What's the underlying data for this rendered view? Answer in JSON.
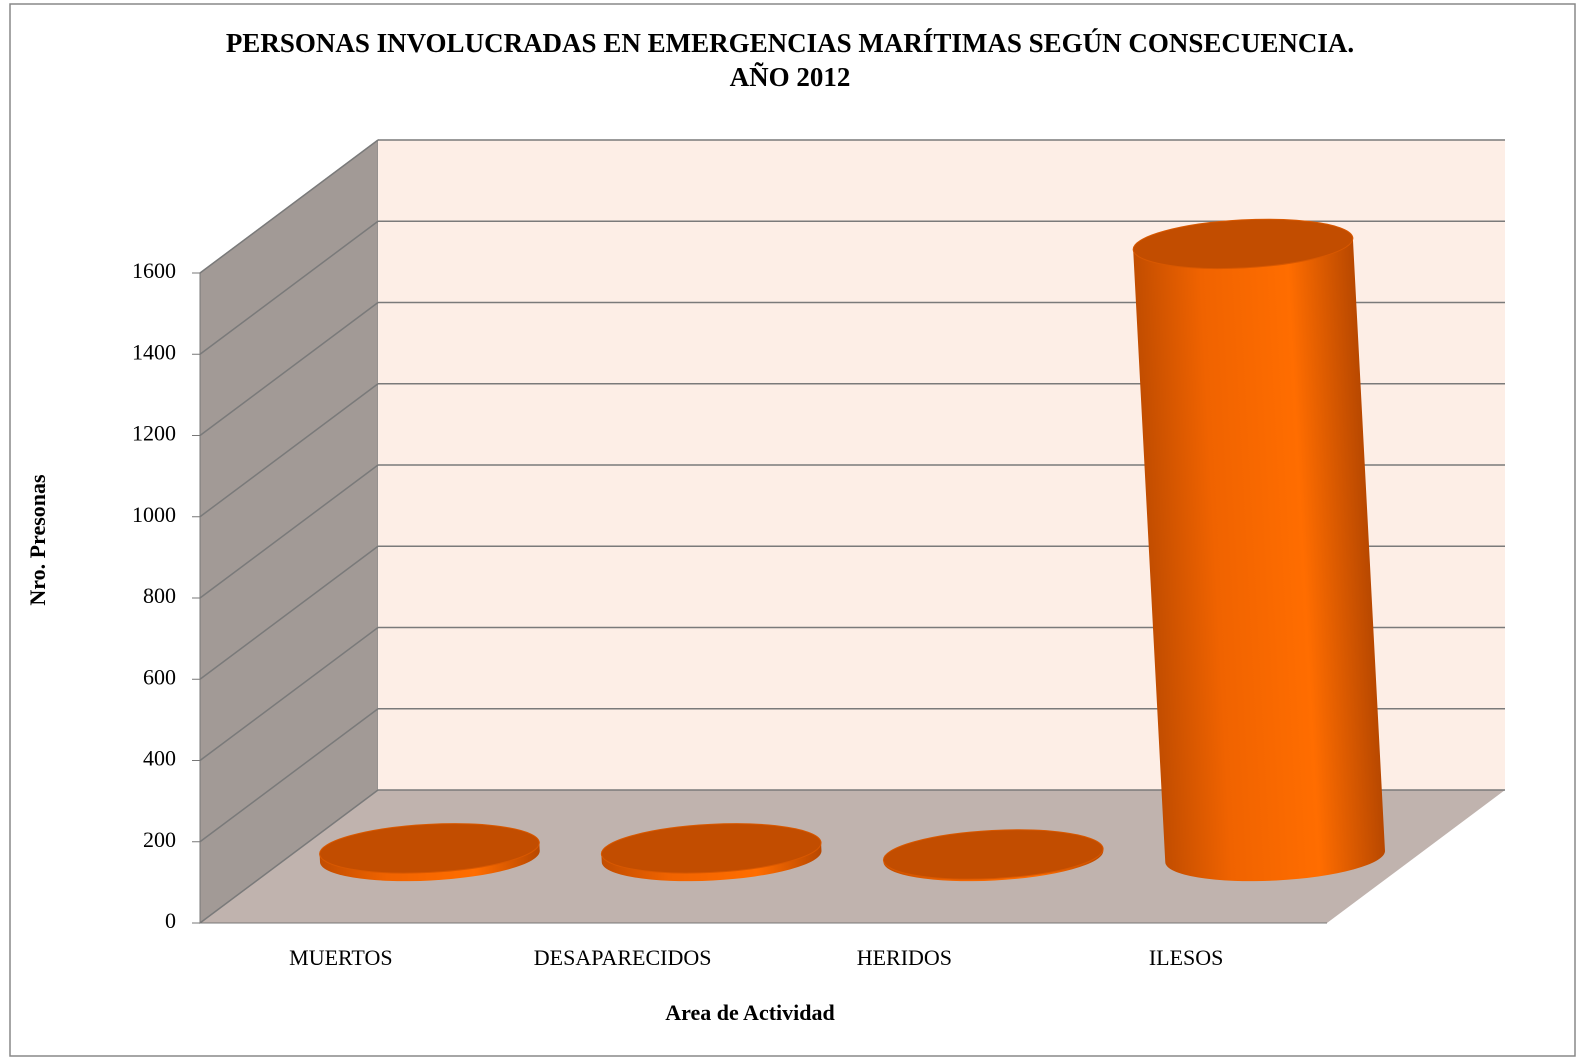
{
  "chart_data": {
    "type": "bar3d",
    "title": [
      "PERSONAS INVOLUCRADAS EN EMERGENCIAS MARÍTIMAS  SEGÚN CONSECUENCIA.",
      "AÑO 2012"
    ],
    "x_label": "Area de Actividad",
    "y_label": "Nro. Presonas",
    "categories": [
      "MUERTOS",
      "DESAPARECIDOS",
      "HERIDOS",
      "ILESOS"
    ],
    "values": [
      20,
      20,
      5,
      1510
    ],
    "color": "#ff6a00",
    "ylim": [
      0,
      1600
    ],
    "yticks": [
      0,
      200,
      400,
      600,
      800,
      1000,
      1200,
      1400,
      1600
    ],
    "grid": true
  }
}
